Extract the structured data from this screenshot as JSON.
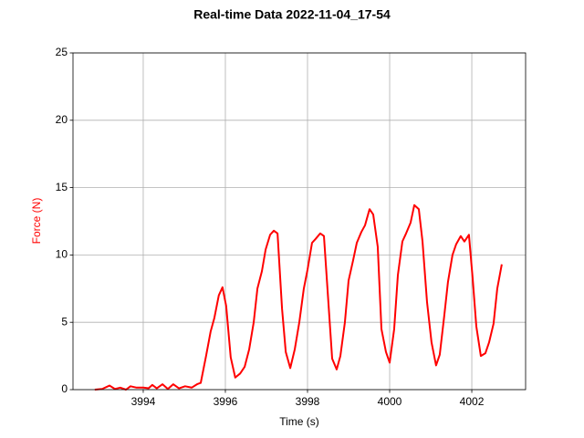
{
  "chart_data": {
    "type": "line",
    "title": "Real-time Data 2022-11-04_17-54",
    "xlabel": "Time (s)",
    "ylabel": "Force (N)",
    "color": "#ff0000",
    "ylabel_color": "#ff0000",
    "grid": true,
    "x": [
      3992.82,
      3993.0,
      3993.18,
      3993.31,
      3993.44,
      3993.58,
      3993.69,
      3993.84,
      3994.0,
      3994.13,
      3994.22,
      3994.33,
      3994.47,
      3994.6,
      3994.73,
      3994.87,
      3995.02,
      3995.18,
      3995.31,
      3995.4,
      3995.53,
      3995.64,
      3995.73,
      3995.84,
      3995.93,
      3996.02,
      3996.13,
      3996.24,
      3996.36,
      3996.47,
      3996.58,
      3996.69,
      3996.78,
      3996.89,
      3996.98,
      3997.09,
      3997.18,
      3997.27,
      3997.38,
      3997.47,
      3997.58,
      3997.69,
      3997.8,
      3997.91,
      3998.0,
      3998.11,
      3998.2,
      3998.31,
      3998.4,
      3998.51,
      3998.6,
      3998.71,
      3998.8,
      3998.91,
      3999.0,
      3999.11,
      3999.2,
      3999.31,
      3999.4,
      3999.51,
      3999.6,
      3999.71,
      3999.8,
      3999.91,
      4000.0,
      4000.11,
      4000.2,
      4000.31,
      4000.4,
      4000.51,
      4000.6,
      4000.71,
      4000.8,
      4000.91,
      4001.02,
      4001.13,
      4001.22,
      4001.33,
      4001.42,
      4001.53,
      4001.62,
      4001.73,
      4001.82,
      4001.93,
      4002.02,
      4002.11,
      4002.22,
      4002.33,
      4002.42,
      4002.53,
      4002.62,
      4002.73
    ],
    "values": [
      0,
      0.05,
      0.3,
      0.05,
      0.15,
      0,
      0.25,
      0.15,
      0.15,
      0.1,
      0.35,
      0.1,
      0.4,
      0.05,
      0.4,
      0.1,
      0.25,
      0.15,
      0.4,
      0.5,
      2.5,
      4.3,
      5.3,
      7.0,
      7.6,
      6.2,
      2.4,
      0.9,
      1.2,
      1.7,
      3.0,
      5.0,
      7.5,
      8.8,
      10.4,
      11.5,
      11.8,
      11.6,
      6.0,
      2.8,
      1.6,
      3.0,
      5.0,
      7.5,
      8.9,
      10.9,
      11.2,
      11.6,
      11.4,
      6.4,
      2.3,
      1.5,
      2.5,
      5.0,
      8.1,
      9.6,
      10.9,
      11.7,
      12.2,
      13.4,
      13.0,
      10.6,
      4.5,
      2.8,
      2.0,
      4.5,
      8.5,
      11.0,
      11.6,
      12.4,
      13.7,
      13.4,
      11.0,
      6.5,
      3.5,
      1.8,
      2.6,
      5.5,
      8.0,
      10.0,
      10.8,
      11.4,
      11.0,
      11.5,
      8.3,
      4.7,
      2.5,
      2.7,
      3.5,
      4.9,
      7.5,
      9.3
    ],
    "xlim": [
      3992.29,
      4003.31
    ],
    "xticks": [
      3994,
      3996,
      3998,
      4000,
      4002
    ],
    "ylim": [
      0,
      25
    ],
    "yticks": [
      0,
      5,
      10,
      15,
      20,
      25
    ]
  }
}
